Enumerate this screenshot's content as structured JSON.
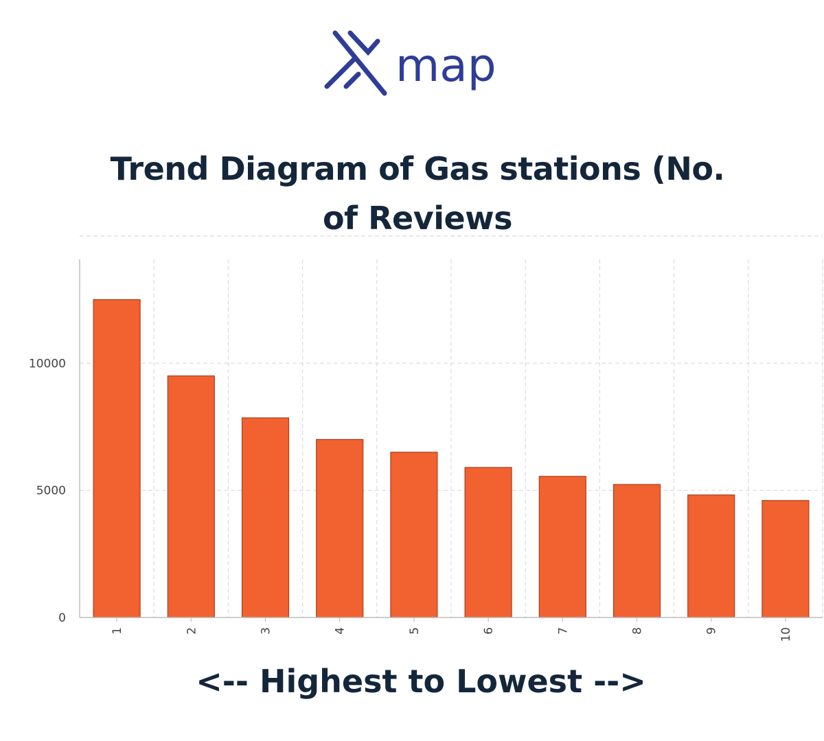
{
  "brand": {
    "name": "map",
    "color": "#2e3d98"
  },
  "chart_data": {
    "type": "bar",
    "title": "Trend Diagram of Gas stations (No. of Reviews",
    "xlabel": "<-- Highest to Lowest -->",
    "ylabel": "",
    "categories": [
      "1",
      "2",
      "3",
      "4",
      "5",
      "6",
      "7",
      "8",
      "9",
      "10"
    ],
    "values": [
      12500,
      9500,
      7850,
      7000,
      6500,
      5900,
      5550,
      5230,
      4820,
      4600
    ],
    "ylim": [
      0,
      15000
    ],
    "yticks": [
      0,
      5000,
      10000
    ],
    "grid": true,
    "legend": "none",
    "bar_color": "#f26130",
    "bar_edge_color": "#a8401e"
  }
}
